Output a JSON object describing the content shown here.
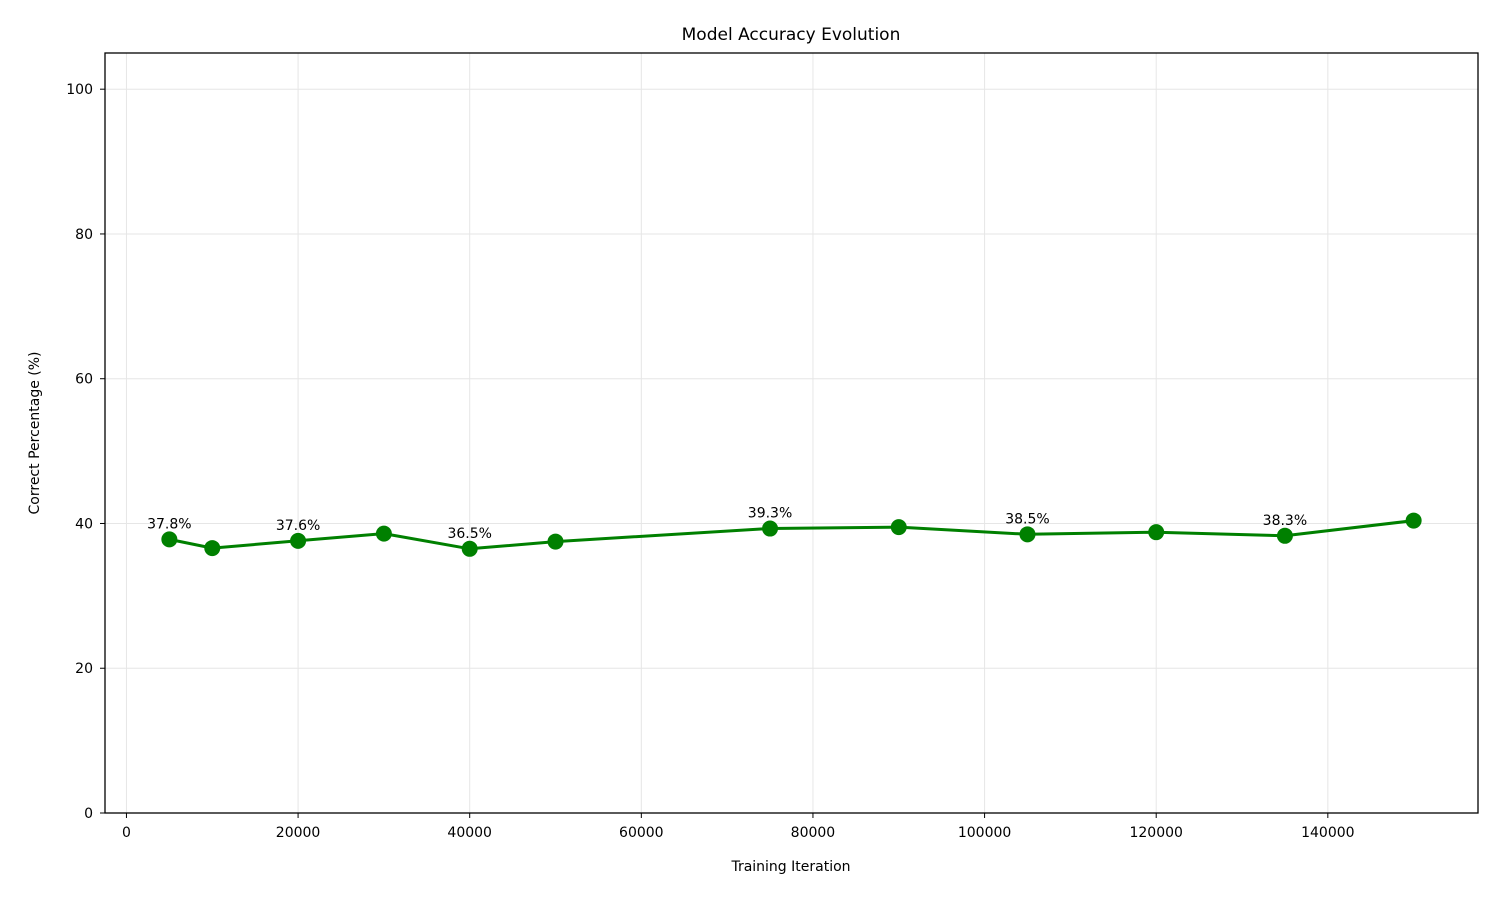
{
  "chart_data": {
    "type": "line",
    "title": "Model Accuracy Evolution",
    "xlabel": "Training Iteration",
    "ylabel": "Correct Percentage (%)",
    "xlim": [
      -2500,
      157500
    ],
    "ylim": [
      0,
      105
    ],
    "x_ticks": [
      0,
      20000,
      40000,
      60000,
      80000,
      100000,
      120000,
      140000
    ],
    "y_ticks": [
      0,
      20,
      40,
      60,
      80,
      100
    ],
    "grid": true,
    "series": [
      {
        "color": "#008000",
        "points": [
          {
            "x": 5000,
            "y": 37.8,
            "label": "37.8%"
          },
          {
            "x": 10000,
            "y": 36.6,
            "label": ""
          },
          {
            "x": 20000,
            "y": 37.6,
            "label": "37.6%"
          },
          {
            "x": 30000,
            "y": 38.6,
            "label": ""
          },
          {
            "x": 40000,
            "y": 36.5,
            "label": "36.5%"
          },
          {
            "x": 50000,
            "y": 37.5,
            "label": ""
          },
          {
            "x": 75000,
            "y": 39.3,
            "label": "39.3%"
          },
          {
            "x": 90000,
            "y": 39.5,
            "label": ""
          },
          {
            "x": 105000,
            "y": 38.5,
            "label": "38.5%"
          },
          {
            "x": 120000,
            "y": 38.8,
            "label": ""
          },
          {
            "x": 135000,
            "y": 38.3,
            "label": "38.3%"
          },
          {
            "x": 150000,
            "y": 40.4,
            "label": ""
          }
        ]
      }
    ]
  }
}
